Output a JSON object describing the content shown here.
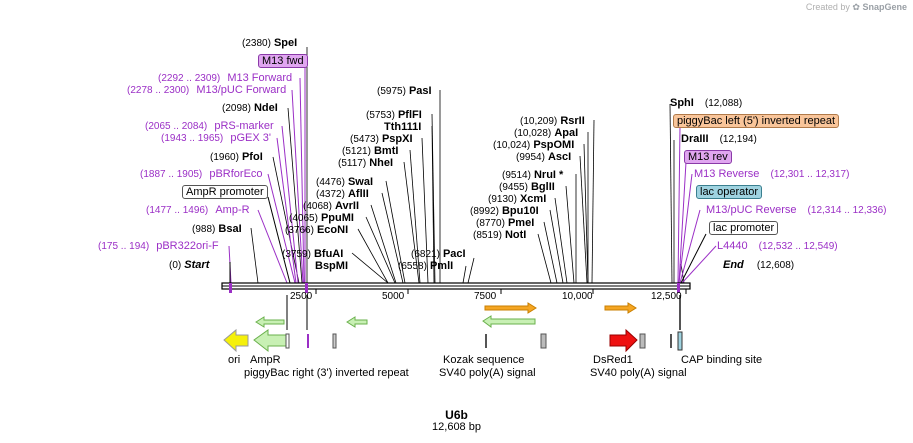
{
  "credit": {
    "prefix": "Created by",
    "brand": "SnapGene"
  },
  "plasmid": {
    "name": "U6b",
    "size_label": "12,608 bp"
  },
  "axis": {
    "ticks": [
      "2500",
      "5000",
      "7500",
      "10,000",
      "12,500"
    ]
  },
  "sites": [
    {
      "coord": "(2380)",
      "name": "SpeI"
    },
    {
      "coord": "(2098)",
      "name": "NdeI"
    },
    {
      "coord": "(1960)",
      "name": "PfoI"
    },
    {
      "coord": "(988)",
      "name": "BsaI"
    },
    {
      "coord": "(0)",
      "name": "Start"
    },
    {
      "coord": "(5975)",
      "name": "PasI"
    },
    {
      "coord": "(5753)",
      "name": "PflFI"
    },
    {
      "coord": "",
      "name": "Tth111I"
    },
    {
      "coord": "(5473)",
      "name": "PspXI"
    },
    {
      "coord": "(5121)",
      "name": "BmtI"
    },
    {
      "coord": "(5117)",
      "name": "NheI"
    },
    {
      "coord": "(4476)",
      "name": "SwaI"
    },
    {
      "coord": "(4372)",
      "name": "AflII"
    },
    {
      "coord": "(4068)",
      "name": "AvrII"
    },
    {
      "coord": "(4065)",
      "name": "PpuMI"
    },
    {
      "coord": "(3766)",
      "name": "EcoNI"
    },
    {
      "coord": "(3759)",
      "name": "BfuAI"
    },
    {
      "coord": "",
      "name": "BspMI"
    },
    {
      "coord": "(6821)",
      "name": "PacI"
    },
    {
      "coord": "(6558)",
      "name": "PmlI"
    },
    {
      "coord": "(10,209)",
      "name": "RsrII"
    },
    {
      "coord": "(10,028)",
      "name": "ApaI"
    },
    {
      "coord": "(10,024)",
      "name": "PspOMI"
    },
    {
      "coord": "(9954)",
      "name": "AscI"
    },
    {
      "coord": "(9514)",
      "name": "NruI *"
    },
    {
      "coord": "(9455)",
      "name": "BglII"
    },
    {
      "coord": "(9130)",
      "name": "XcmI"
    },
    {
      "coord": "(8992)",
      "name": "Bpu10I"
    },
    {
      "coord": "(8770)",
      "name": "PmeI"
    },
    {
      "coord": "(8519)",
      "name": "NotI"
    },
    {
      "coord": "(12,088)",
      "name": "SphI"
    },
    {
      "coord": "(12,194)",
      "name": "DraIII"
    },
    {
      "coord": "(12,608)",
      "name": "End"
    }
  ],
  "features": [
    {
      "name": "M13 fwd",
      "coord": ""
    },
    {
      "name": "M13 Forward",
      "coord": "(2292 .. 2309)"
    },
    {
      "name": "M13/pUC Forward",
      "coord": "(2278 .. 2300)"
    },
    {
      "name": "pRS-marker",
      "coord": "(2065 .. 2084)"
    },
    {
      "name": "pGEX 3'",
      "coord": "(1943 .. 1965)"
    },
    {
      "name": "pBRforEco",
      "coord": "(1887 .. 1905)"
    },
    {
      "name": "AmpR promoter",
      "coord": ""
    },
    {
      "name": "Amp-R",
      "coord": "(1477 .. 1496)"
    },
    {
      "name": "pBR322ori-F",
      "coord": "(175 .. 194)"
    },
    {
      "name": "piggyBac left (5') inverted repeat",
      "coord": ""
    },
    {
      "name": "M13 rev",
      "coord": ""
    },
    {
      "name": "M13 Reverse",
      "coord": "(12,301 .. 12,317)"
    },
    {
      "name": "lac operator",
      "coord": ""
    },
    {
      "name": "M13/pUC Reverse",
      "coord": "(12,314 .. 12,336)"
    },
    {
      "name": "lac promoter",
      "coord": ""
    },
    {
      "name": "L4440",
      "coord": "(12,532 .. 12,549)"
    }
  ],
  "bottom_features": [
    {
      "name": "ori"
    },
    {
      "name": "AmpR"
    },
    {
      "name": "piggyBac right (3') inverted repeat"
    },
    {
      "name": "Kozak sequence"
    },
    {
      "name": "SV40 poly(A) signal"
    },
    {
      "name": "DsRed1"
    },
    {
      "name": "SV40 poly(A) signal"
    },
    {
      "name": "CAP binding site"
    }
  ],
  "colors": {
    "primer_purple": "#9b2fc6",
    "ori_yellow": "#f5f00a",
    "ampr_green": "#c8f0b4",
    "dsred": "#ee1111",
    "orange_arrow": "#f5a623",
    "piggybac_orange": "#f9c59a",
    "m13_purple_fill": "#e0a6f0",
    "lac_op_fill": "#9fd3e0"
  }
}
